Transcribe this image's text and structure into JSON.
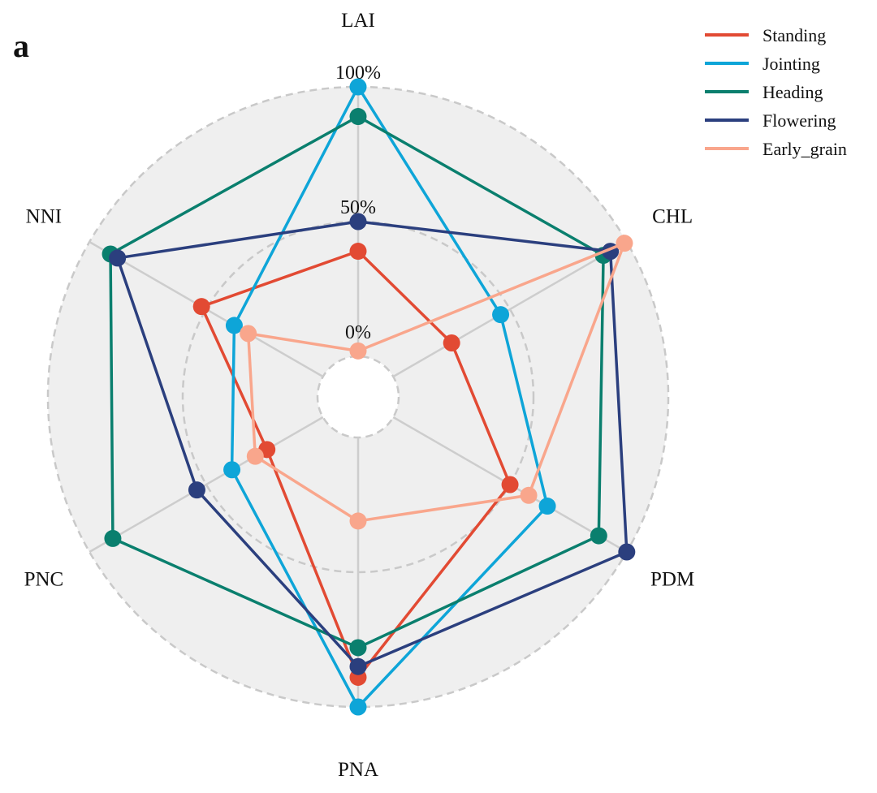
{
  "panel_label": "a",
  "chart_data": {
    "type": "radar",
    "title": "",
    "axes": [
      "LAI",
      "CHL",
      "PDM",
      "PNA",
      "PNC",
      "NNI"
    ],
    "rlim": [
      0,
      100
    ],
    "tick_labels": [
      "0%",
      "50%",
      "100%"
    ],
    "tick_values": [
      0,
      50,
      100
    ],
    "legend_position": "top-right",
    "series": [
      {
        "name": "Standing",
        "color": "#e24a33",
        "values": [
          39,
          25,
          50,
          89,
          24,
          52
        ]
      },
      {
        "name": "Jointing",
        "color": "#0ea5d8",
        "values": [
          100,
          46,
          66,
          100,
          39,
          38
        ]
      },
      {
        "name": "Heading",
        "color": "#0a7f6e",
        "values": [
          89,
          90,
          88,
          78,
          90,
          91
        ]
      },
      {
        "name": "Flowering",
        "color": "#2b3f7e",
        "values": [
          50,
          93,
          100,
          85,
          54,
          88
        ]
      },
      {
        "name": "Early_grain",
        "color": "#f9a68c",
        "values": [
          2,
          99,
          58,
          31,
          29,
          32
        ]
      }
    ]
  }
}
